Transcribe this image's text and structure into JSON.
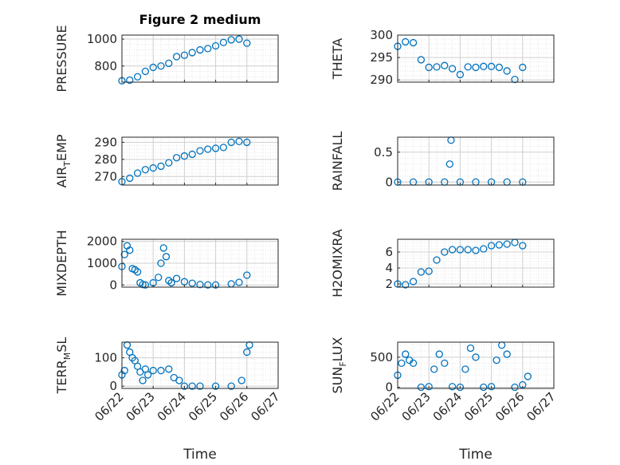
{
  "figure": {
    "title": "Figure 2 medium"
  },
  "colors": {
    "marker": "#0072BD",
    "axis": "#262626",
    "grid": "#d0d0d0",
    "minor_grid": "#e6e6e6"
  },
  "chart_data": [
    {
      "type": "scatter",
      "id": "pressure",
      "ylabel": "PRESSURE",
      "ylabel_sub": "",
      "ylim": [
        680,
        1030
      ],
      "yticks": [
        800,
        1000
      ],
      "ytick_labels": [
        "800",
        "1000"
      ],
      "x": [
        "06/22 00:00",
        "06/22 06:00",
        "06/22 12:00",
        "06/22 18:00",
        "06/23 00:00",
        "06/23 06:00",
        "06/23 12:00",
        "06/23 18:00",
        "06/24 00:00",
        "06/24 06:00",
        "06/24 12:00",
        "06/24 18:00",
        "06/25 00:00",
        "06/25 06:00",
        "06/25 12:00",
        "06/25 18:00",
        "06/26 00:00"
      ],
      "values": [
        690,
        695,
        720,
        760,
        790,
        800,
        820,
        870,
        880,
        900,
        920,
        930,
        950,
        975,
        995,
        1000,
        970
      ]
    },
    {
      "type": "scatter",
      "id": "theta",
      "ylabel": "THETA",
      "ylabel_sub": "",
      "ylim": [
        289.5,
        300
      ],
      "yticks": [
        290,
        295,
        300
      ],
      "ytick_labels": [
        "290",
        "295",
        "300"
      ],
      "x": [
        "06/22 00:00",
        "06/22 06:00",
        "06/22 12:00",
        "06/22 18:00",
        "06/23 00:00",
        "06/23 06:00",
        "06/23 12:00",
        "06/23 18:00",
        "06/24 00:00",
        "06/24 06:00",
        "06/24 12:00",
        "06/24 18:00",
        "06/25 00:00",
        "06/25 06:00",
        "06/25 12:00",
        "06/25 18:00",
        "06/26 00:00"
      ],
      "values": [
        297.5,
        298.5,
        298.3,
        294.5,
        292.8,
        292.9,
        293.2,
        292.5,
        291.2,
        292.9,
        292.8,
        293.0,
        293.0,
        292.8,
        292.0,
        290.1,
        292.8
      ]
    },
    {
      "type": "scatter",
      "id": "air_temp",
      "ylabel": "AIR",
      "ylabel_sub": "T",
      "ylabel_rest": "EMP",
      "ylim": [
        265,
        293
      ],
      "yticks": [
        270,
        280,
        290
      ],
      "ytick_labels": [
        "270",
        "280",
        "290"
      ],
      "x": [
        "06/22 00:00",
        "06/22 06:00",
        "06/22 12:00",
        "06/22 18:00",
        "06/23 00:00",
        "06/23 06:00",
        "06/23 12:00",
        "06/23 18:00",
        "06/24 00:00",
        "06/24 06:00",
        "06/24 12:00",
        "06/24 18:00",
        "06/25 00:00",
        "06/25 06:00",
        "06/25 12:00",
        "06/25 18:00",
        "06/26 00:00"
      ],
      "values": [
        267,
        269,
        272,
        274,
        275,
        276,
        278,
        281,
        282,
        283,
        285,
        286,
        286.5,
        287,
        290,
        290.5,
        290
      ]
    },
    {
      "type": "scatter",
      "id": "rainfall",
      "ylabel": "RAINFALL",
      "ylabel_sub": "",
      "ylim": [
        -0.05,
        0.75
      ],
      "yticks": [
        0,
        0.5
      ],
      "ytick_labels": [
        "0",
        "0.5"
      ],
      "x": [
        "06/22 00:00",
        "06/22 12:00",
        "06/23 00:00",
        "06/23 12:00",
        "06/23 16:00",
        "06/23 17:00",
        "06/24 00:00",
        "06/24 12:00",
        "06/25 00:00",
        "06/25 12:00",
        "06/26 00:00"
      ],
      "values": [
        0,
        0,
        0,
        0,
        0.3,
        0.7,
        0,
        0,
        0,
        0,
        0
      ]
    },
    {
      "type": "scatter",
      "id": "mixdepth",
      "ylabel": "MIXDEPTH",
      "ylabel_sub": "",
      "ylim": [
        -100,
        2100
      ],
      "yticks": [
        0,
        1000,
        2000
      ],
      "ytick_labels": [
        "0",
        "1000",
        "2000"
      ],
      "x": [
        "06/22 00:00",
        "06/22 02:00",
        "06/22 04:00",
        "06/22 06:00",
        "06/22 08:00",
        "06/22 10:00",
        "06/22 12:00",
        "06/22 14:00",
        "06/22 16:00",
        "06/22 18:00",
        "06/23 00:00",
        "06/23 04:00",
        "06/23 06:00",
        "06/23 08:00",
        "06/23 10:00",
        "06/23 12:00",
        "06/23 14:00",
        "06/23 18:00",
        "06/24 00:00",
        "06/24 06:00",
        "06/24 12:00",
        "06/24 18:00",
        "06/25 00:00",
        "06/25 12:00",
        "06/25 18:00",
        "06/26 00:00"
      ],
      "values": [
        850,
        1400,
        1800,
        1600,
        750,
        700,
        600,
        100,
        20,
        0,
        100,
        350,
        1000,
        1700,
        1300,
        200,
        100,
        300,
        150,
        80,
        20,
        0,
        0,
        50,
        120,
        450
      ]
    },
    {
      "type": "scatter",
      "id": "h2omixra",
      "ylabel": "H2OMIXRA",
      "ylabel_sub": "",
      "ylim": [
        1.6,
        7.6
      ],
      "yticks": [
        2,
        4,
        6
      ],
      "ytick_labels": [
        "2",
        "4",
        "6"
      ],
      "x": [
        "06/22 00:00",
        "06/22 06:00",
        "06/22 12:00",
        "06/22 18:00",
        "06/23 00:00",
        "06/23 06:00",
        "06/23 12:00",
        "06/23 18:00",
        "06/24 00:00",
        "06/24 06:00",
        "06/24 12:00",
        "06/24 18:00",
        "06/25 00:00",
        "06/25 06:00",
        "06/25 12:00",
        "06/25 18:00",
        "06/26 00:00"
      ],
      "values": [
        2.0,
        1.9,
        2.3,
        3.5,
        3.6,
        5.0,
        6.0,
        6.3,
        6.3,
        6.3,
        6.2,
        6.4,
        6.8,
        6.9,
        7.0,
        7.2,
        6.8
      ]
    },
    {
      "type": "scatter",
      "id": "terr_msl",
      "ylabel": "TERR",
      "ylabel_sub": "M",
      "ylabel_rest": "SL",
      "ylim": [
        -8,
        155
      ],
      "yticks": [
        0,
        100
      ],
      "ytick_labels": [
        "0",
        "100"
      ],
      "x": [
        "06/22 00:00",
        "06/22 02:00",
        "06/22 04:00",
        "06/22 06:00",
        "06/22 08:00",
        "06/22 10:00",
        "06/22 12:00",
        "06/22 14:00",
        "06/22 16:00",
        "06/22 18:00",
        "06/22 20:00",
        "06/23 00:00",
        "06/23 06:00",
        "06/23 12:00",
        "06/23 16:00",
        "06/23 20:00",
        "06/24 00:00",
        "06/24 06:00",
        "06/24 12:00",
        "06/25 00:00",
        "06/25 12:00",
        "06/25 20:00",
        "06/26 00:00",
        "06/26 02:00"
      ],
      "values": [
        40,
        55,
        145,
        120,
        100,
        90,
        70,
        50,
        20,
        60,
        40,
        55,
        55,
        60,
        30,
        20,
        0,
        0,
        0,
        0,
        0,
        20,
        120,
        145
      ]
    },
    {
      "type": "scatter",
      "id": "sun_flux",
      "ylabel": "SUN",
      "ylabel_sub": "F",
      "ylabel_rest": "LUX",
      "ylim": [
        -20,
        750
      ],
      "yticks": [
        0,
        500
      ],
      "ytick_labels": [
        "0",
        "500"
      ],
      "x": [
        "06/22 00:00",
        "06/22 03:00",
        "06/22 06:00",
        "06/22 09:00",
        "06/22 12:00",
        "06/22 18:00",
        "06/23 00:00",
        "06/23 04:00",
        "06/23 08:00",
        "06/23 12:00",
        "06/23 18:00",
        "06/24 00:00",
        "06/24 04:00",
        "06/24 08:00",
        "06/24 12:00",
        "06/24 18:00",
        "06/25 00:00",
        "06/25 04:00",
        "06/25 08:00",
        "06/25 12:00",
        "06/25 18:00",
        "06/26 00:00",
        "06/26 04:00"
      ],
      "values": [
        200,
        400,
        550,
        450,
        400,
        0,
        10,
        300,
        550,
        400,
        10,
        0,
        300,
        650,
        500,
        0,
        10,
        450,
        700,
        550,
        0,
        40,
        180
      ]
    }
  ],
  "xaxis": {
    "ticks": [
      "06/22",
      "06/23",
      "06/24",
      "06/25",
      "06/26",
      "06/27"
    ],
    "xlabel": "Time"
  }
}
